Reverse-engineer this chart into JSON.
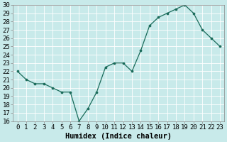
{
  "x": [
    0,
    1,
    2,
    3,
    4,
    5,
    6,
    7,
    8,
    9,
    10,
    11,
    12,
    13,
    14,
    15,
    16,
    17,
    18,
    19,
    20,
    21,
    22,
    23
  ],
  "y": [
    22,
    21,
    20.5,
    20.5,
    20,
    19.5,
    19.5,
    16,
    17.5,
    19.5,
    22.5,
    23,
    23,
    22,
    24.5,
    27.5,
    28.5,
    29,
    29.5,
    30,
    29,
    27,
    26,
    25
  ],
  "xlabel": "Humidex (Indice chaleur)",
  "ylim": [
    16,
    30
  ],
  "xlim": [
    -0.5,
    23.5
  ],
  "yticks": [
    16,
    17,
    18,
    19,
    20,
    21,
    22,
    23,
    24,
    25,
    26,
    27,
    28,
    29,
    30
  ],
  "xticks": [
    0,
    1,
    2,
    3,
    4,
    5,
    6,
    7,
    8,
    9,
    10,
    11,
    12,
    13,
    14,
    15,
    16,
    17,
    18,
    19,
    20,
    21,
    22,
    23
  ],
  "line_color": "#1a6b5a",
  "marker_color": "#1a6b5a",
  "bg_color": "#c8eaea",
  "grid_color": "#e8f8f8",
  "border_color": "#888888",
  "tick_fontsize": 6.5,
  "xlabel_fontsize": 7.5
}
